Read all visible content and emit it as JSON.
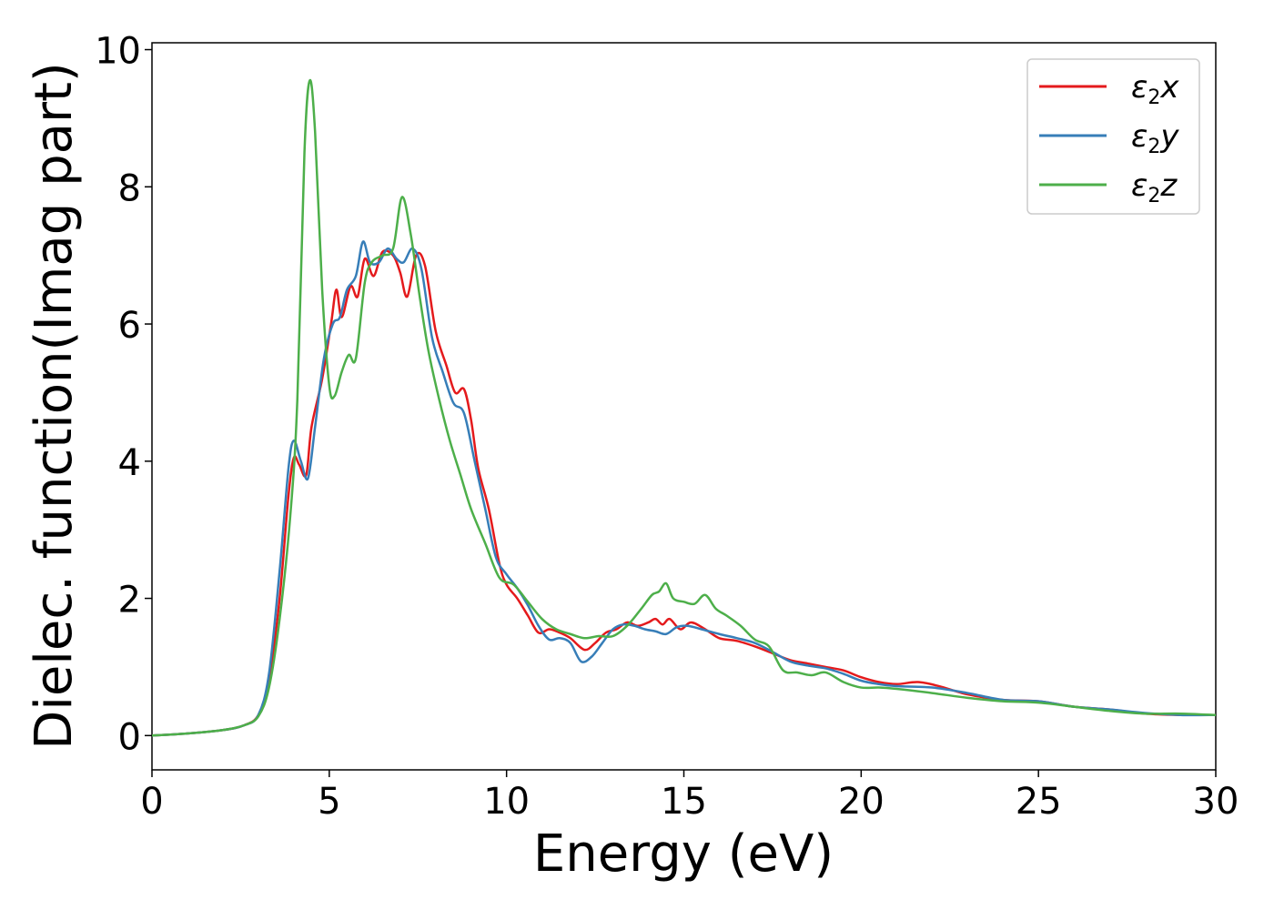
{
  "chart_data": {
    "type": "line",
    "title": "",
    "xlabel": "Energy (eV)",
    "ylabel": "Dielec. function(Imag part)",
    "xlim": [
      0,
      30
    ],
    "ylim": [
      -0.5,
      10.1
    ],
    "xticks": [
      "0",
      "5",
      "10",
      "15",
      "20",
      "25",
      "30"
    ],
    "yticks": [
      "0",
      "2",
      "4",
      "6",
      "8",
      "10"
    ],
    "grid": false,
    "legend_position": "top-right",
    "series": [
      {
        "name": "ε2x",
        "legend_base": "ε",
        "legend_sub": "2",
        "legend_var": "x",
        "color": "#e41a1c",
        "points": [
          [
            0,
            0
          ],
          [
            1,
            0.03
          ],
          [
            2,
            0.08
          ],
          [
            2.6,
            0.15
          ],
          [
            3,
            0.3
          ],
          [
            3.3,
            0.8
          ],
          [
            3.6,
            2.0
          ],
          [
            3.85,
            3.5
          ],
          [
            4.0,
            4.05
          ],
          [
            4.15,
            3.95
          ],
          [
            4.35,
            3.8
          ],
          [
            4.5,
            4.5
          ],
          [
            4.8,
            5.2
          ],
          [
            5.05,
            6.0
          ],
          [
            5.2,
            6.5
          ],
          [
            5.35,
            6.1
          ],
          [
            5.6,
            6.55
          ],
          [
            5.8,
            6.4
          ],
          [
            6.0,
            6.95
          ],
          [
            6.25,
            6.7
          ],
          [
            6.5,
            7.05
          ],
          [
            6.8,
            7.0
          ],
          [
            7.0,
            6.75
          ],
          [
            7.2,
            6.4
          ],
          [
            7.45,
            7.0
          ],
          [
            7.7,
            6.85
          ],
          [
            8.0,
            5.9
          ],
          [
            8.3,
            5.4
          ],
          [
            8.55,
            5.0
          ],
          [
            8.8,
            5.05
          ],
          [
            9.0,
            4.6
          ],
          [
            9.2,
            3.9
          ],
          [
            9.5,
            3.3
          ],
          [
            9.8,
            2.5
          ],
          [
            10.0,
            2.2
          ],
          [
            10.3,
            2.0
          ],
          [
            10.6,
            1.75
          ],
          [
            10.9,
            1.5
          ],
          [
            11.2,
            1.55
          ],
          [
            11.5,
            1.5
          ],
          [
            11.8,
            1.42
          ],
          [
            12.2,
            1.25
          ],
          [
            12.5,
            1.35
          ],
          [
            12.8,
            1.5
          ],
          [
            13.1,
            1.55
          ],
          [
            13.4,
            1.65
          ],
          [
            13.7,
            1.6
          ],
          [
            14.0,
            1.65
          ],
          [
            14.2,
            1.7
          ],
          [
            14.4,
            1.62
          ],
          [
            14.6,
            1.7
          ],
          [
            14.9,
            1.55
          ],
          [
            15.2,
            1.65
          ],
          [
            15.6,
            1.55
          ],
          [
            16.0,
            1.42
          ],
          [
            16.5,
            1.38
          ],
          [
            17.0,
            1.3
          ],
          [
            17.5,
            1.2
          ],
          [
            18.0,
            1.1
          ],
          [
            18.5,
            1.05
          ],
          [
            19.0,
            1.0
          ],
          [
            19.5,
            0.95
          ],
          [
            20.0,
            0.85
          ],
          [
            20.5,
            0.78
          ],
          [
            21.0,
            0.75
          ],
          [
            21.6,
            0.78
          ],
          [
            22.2,
            0.72
          ],
          [
            23.0,
            0.6
          ],
          [
            24.0,
            0.52
          ],
          [
            25.0,
            0.5
          ],
          [
            26.0,
            0.42
          ],
          [
            27.0,
            0.38
          ],
          [
            28.0,
            0.32
          ],
          [
            29.0,
            0.3
          ],
          [
            30.0,
            0.3
          ]
        ]
      },
      {
        "name": "ε2y",
        "legend_base": "ε",
        "legend_sub": "2",
        "legend_var": "y",
        "color": "#377eb8",
        "points": [
          [
            0,
            0
          ],
          [
            1,
            0.03
          ],
          [
            2,
            0.08
          ],
          [
            2.6,
            0.15
          ],
          [
            3,
            0.3
          ],
          [
            3.3,
            0.9
          ],
          [
            3.6,
            2.4
          ],
          [
            3.85,
            3.9
          ],
          [
            4.0,
            4.3
          ],
          [
            4.2,
            4.0
          ],
          [
            4.4,
            3.75
          ],
          [
            4.6,
            4.5
          ],
          [
            4.85,
            5.5
          ],
          [
            5.1,
            6.0
          ],
          [
            5.3,
            6.1
          ],
          [
            5.5,
            6.5
          ],
          [
            5.75,
            6.7
          ],
          [
            5.95,
            7.2
          ],
          [
            6.15,
            6.9
          ],
          [
            6.4,
            6.9
          ],
          [
            6.65,
            7.1
          ],
          [
            6.9,
            6.95
          ],
          [
            7.1,
            6.9
          ],
          [
            7.35,
            7.1
          ],
          [
            7.6,
            6.8
          ],
          [
            7.9,
            5.8
          ],
          [
            8.2,
            5.3
          ],
          [
            8.5,
            4.85
          ],
          [
            8.8,
            4.7
          ],
          [
            9.1,
            4.0
          ],
          [
            9.4,
            3.3
          ],
          [
            9.7,
            2.6
          ],
          [
            10.0,
            2.35
          ],
          [
            10.3,
            2.15
          ],
          [
            10.6,
            1.9
          ],
          [
            10.9,
            1.6
          ],
          [
            11.2,
            1.4
          ],
          [
            11.5,
            1.42
          ],
          [
            11.8,
            1.35
          ],
          [
            12.1,
            1.08
          ],
          [
            12.4,
            1.15
          ],
          [
            12.7,
            1.35
          ],
          [
            13.0,
            1.55
          ],
          [
            13.3,
            1.62
          ],
          [
            13.6,
            1.6
          ],
          [
            13.9,
            1.55
          ],
          [
            14.2,
            1.52
          ],
          [
            14.5,
            1.48
          ],
          [
            14.8,
            1.58
          ],
          [
            15.1,
            1.6
          ],
          [
            15.5,
            1.55
          ],
          [
            16.0,
            1.48
          ],
          [
            16.5,
            1.42
          ],
          [
            17.0,
            1.35
          ],
          [
            17.5,
            1.22
          ],
          [
            18.0,
            1.08
          ],
          [
            18.5,
            1.02
          ],
          [
            19.0,
            0.98
          ],
          [
            19.5,
            0.9
          ],
          [
            20.0,
            0.8
          ],
          [
            20.5,
            0.75
          ],
          [
            21.0,
            0.72
          ],
          [
            22.0,
            0.7
          ],
          [
            23.0,
            0.62
          ],
          [
            24.0,
            0.52
          ],
          [
            25.0,
            0.5
          ],
          [
            26.0,
            0.42
          ],
          [
            27.0,
            0.38
          ],
          [
            28.0,
            0.33
          ],
          [
            29.0,
            0.3
          ],
          [
            30.0,
            0.3
          ]
        ]
      },
      {
        "name": "ε2z",
        "legend_base": "ε",
        "legend_sub": "2",
        "legend_var": "z",
        "color": "#4daf4a",
        "points": [
          [
            0,
            0
          ],
          [
            1,
            0.03
          ],
          [
            2,
            0.08
          ],
          [
            2.6,
            0.15
          ],
          [
            3,
            0.28
          ],
          [
            3.3,
            0.7
          ],
          [
            3.6,
            1.7
          ],
          [
            3.9,
            3.2
          ],
          [
            4.1,
            4.9
          ],
          [
            4.3,
            8.5
          ],
          [
            4.45,
            9.55
          ],
          [
            4.6,
            8.8
          ],
          [
            4.8,
            6.5
          ],
          [
            5.0,
            5.1
          ],
          [
            5.15,
            4.95
          ],
          [
            5.35,
            5.3
          ],
          [
            5.55,
            5.55
          ],
          [
            5.75,
            5.5
          ],
          [
            6.0,
            6.6
          ],
          [
            6.2,
            6.9
          ],
          [
            6.5,
            7.0
          ],
          [
            6.8,
            7.1
          ],
          [
            7.05,
            7.85
          ],
          [
            7.3,
            7.3
          ],
          [
            7.55,
            6.4
          ],
          [
            7.8,
            5.6
          ],
          [
            8.1,
            4.9
          ],
          [
            8.4,
            4.3
          ],
          [
            8.7,
            3.8
          ],
          [
            9.0,
            3.3
          ],
          [
            9.4,
            2.8
          ],
          [
            9.8,
            2.3
          ],
          [
            10.2,
            2.2
          ],
          [
            10.6,
            1.95
          ],
          [
            11.0,
            1.7
          ],
          [
            11.4,
            1.55
          ],
          [
            11.8,
            1.48
          ],
          [
            12.2,
            1.42
          ],
          [
            12.6,
            1.45
          ],
          [
            13.0,
            1.45
          ],
          [
            13.4,
            1.6
          ],
          [
            13.8,
            1.85
          ],
          [
            14.1,
            2.05
          ],
          [
            14.3,
            2.1
          ],
          [
            14.5,
            2.22
          ],
          [
            14.7,
            2.0
          ],
          [
            15.0,
            1.95
          ],
          [
            15.3,
            1.92
          ],
          [
            15.6,
            2.05
          ],
          [
            15.9,
            1.85
          ],
          [
            16.2,
            1.75
          ],
          [
            16.6,
            1.6
          ],
          [
            17.0,
            1.4
          ],
          [
            17.4,
            1.3
          ],
          [
            17.8,
            0.95
          ],
          [
            18.2,
            0.92
          ],
          [
            18.6,
            0.88
          ],
          [
            19.0,
            0.92
          ],
          [
            19.5,
            0.78
          ],
          [
            20.0,
            0.7
          ],
          [
            20.5,
            0.7
          ],
          [
            21.0,
            0.68
          ],
          [
            22.0,
            0.62
          ],
          [
            23.0,
            0.55
          ],
          [
            24.0,
            0.5
          ],
          [
            25.0,
            0.48
          ],
          [
            26.0,
            0.42
          ],
          [
            27.0,
            0.36
          ],
          [
            28.0,
            0.32
          ],
          [
            29.0,
            0.32
          ],
          [
            30.0,
            0.3
          ]
        ]
      }
    ]
  }
}
